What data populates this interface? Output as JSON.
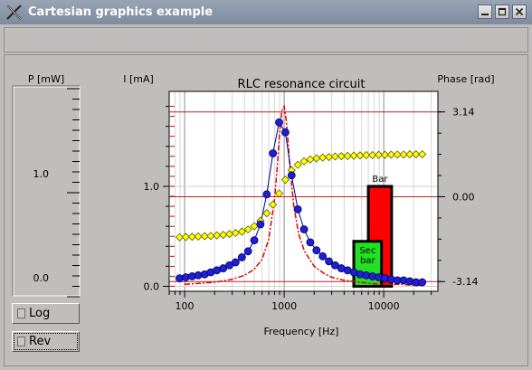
{
  "window": {
    "title": "Cartesian graphics example",
    "minimize_icon": "minimize-icon",
    "maximize_icon": "maximize-icon",
    "close_icon": "close-icon",
    "app_icon": "x-logo-icon"
  },
  "power_gauge": {
    "title": "P [mW]",
    "tick_labels": [
      "1.0",
      "0.0"
    ]
  },
  "controls": {
    "log_label": "Log",
    "rev_label": "Rev"
  },
  "colors": {
    "current_markers": "#1f1fd6",
    "phase_markers": "#ffff00",
    "theory_curve": "#e00000",
    "bar": "#ff0000",
    "sec_bar": "#22e022"
  },
  "chart_data": {
    "type": "line",
    "title": "RLC resonance circuit",
    "xlabel": "Frequency [Hz]",
    "ylabel": "I [mA]",
    "y2label": "Phase [rad]",
    "x_scale": "log",
    "xlim": [
      70,
      35000
    ],
    "ylim": [
      -0.05,
      1.95
    ],
    "y2lim": [
      -3.5,
      3.9
    ],
    "x_ticks": [
      100,
      1000,
      10000
    ],
    "x_tick_labels": [
      "100",
      "1000",
      "10000"
    ],
    "y_ticks": [
      0,
      1
    ],
    "y_tick_labels": [
      "0.0",
      "1.0"
    ],
    "y2_ticks": [
      -3.14,
      0,
      3.14
    ],
    "y2_tick_labels": [
      "-3.14",
      "0.00",
      "3.14"
    ],
    "grid": true,
    "series": [
      {
        "marker": "circle",
        "color": "#1f1fd6",
        "x": [
          89,
          103,
          119,
          137,
          159,
          183,
          211,
          244,
          282,
          325,
          376,
          434,
          501,
          578,
          668,
          771,
          890,
          1028,
          1187,
          1371,
          1583,
          1828,
          2111,
          2438,
          2815,
          3251,
          3754,
          4335,
          5006,
          5781,
          6676,
          7709,
          8902,
          10280,
          11872,
          13709,
          15831,
          18282,
          21112,
          24380
        ],
        "y": [
          0.08,
          0.09,
          0.1,
          0.11,
          0.12,
          0.14,
          0.16,
          0.18,
          0.21,
          0.24,
          0.29,
          0.35,
          0.46,
          0.62,
          0.92,
          1.33,
          1.64,
          1.54,
          1.11,
          0.77,
          0.57,
          0.44,
          0.36,
          0.3,
          0.25,
          0.21,
          0.18,
          0.16,
          0.14,
          0.12,
          0.11,
          0.1,
          0.09,
          0.08,
          0.07,
          0.06,
          0.06,
          0.05,
          0.04,
          0.04
        ]
      },
      {
        "marker": "diamond",
        "color": "#ffff00",
        "y_axis": "right",
        "x": [
          89,
          103,
          119,
          137,
          159,
          183,
          211,
          244,
          282,
          325,
          376,
          434,
          501,
          578,
          668,
          771,
          890,
          1028,
          1187,
          1371,
          1583,
          1828,
          2111,
          2438,
          2815,
          3251,
          3754,
          4335,
          5006,
          5781,
          6676,
          7709,
          8902,
          10280,
          11872,
          13709,
          15831,
          18282,
          21112,
          24380
        ],
        "y": [
          -1.5,
          -1.49,
          -1.48,
          -1.47,
          -1.46,
          -1.45,
          -1.43,
          -1.41,
          -1.38,
          -1.34,
          -1.29,
          -1.21,
          -1.09,
          -0.89,
          -0.61,
          -0.29,
          0.12,
          0.63,
          0.98,
          1.18,
          1.31,
          1.38,
          1.42,
          1.45,
          1.47,
          1.49,
          1.5,
          1.51,
          1.52,
          1.53,
          1.54,
          1.54,
          1.55,
          1.55,
          1.56,
          1.56,
          1.56,
          1.57,
          1.57,
          1.57
        ]
      },
      {
        "marker": "none",
        "line": "dash-dot",
        "color": "#e00000",
        "x": [
          100,
          200,
          300,
          400,
          500,
          600,
          700,
          800,
          850,
          900,
          950,
          1000,
          1050,
          1100,
          1150,
          1250,
          1400,
          1600,
          2000,
          2500,
          3000,
          4000,
          5000,
          7000,
          10000,
          15000,
          20000,
          25000
        ],
        "y": [
          0.02,
          0.04,
          0.07,
          0.11,
          0.17,
          0.27,
          0.47,
          0.87,
          1.18,
          1.53,
          1.76,
          1.8,
          1.66,
          1.41,
          1.16,
          0.8,
          0.52,
          0.35,
          0.2,
          0.13,
          0.09,
          0.06,
          0.05,
          0.03,
          0.02,
          0.02,
          0.01,
          0.01
        ]
      }
    ],
    "bars": [
      {
        "label": "Bar",
        "x_from": 7000,
        "x_to": 12000,
        "value": 1.0,
        "color": "#ff0000"
      },
      {
        "label": "Sec bar",
        "label_lines": [
          "Sec",
          "bar"
        ],
        "x_from": 5000,
        "x_to": 9500,
        "value": 0.45,
        "color": "#22e022"
      }
    ],
    "reference_lines": [
      {
        "axis": "right",
        "value": 0.0
      },
      {
        "axis": "right",
        "value": -3.14
      },
      {
        "axis": "right",
        "value": 3.14
      }
    ]
  }
}
